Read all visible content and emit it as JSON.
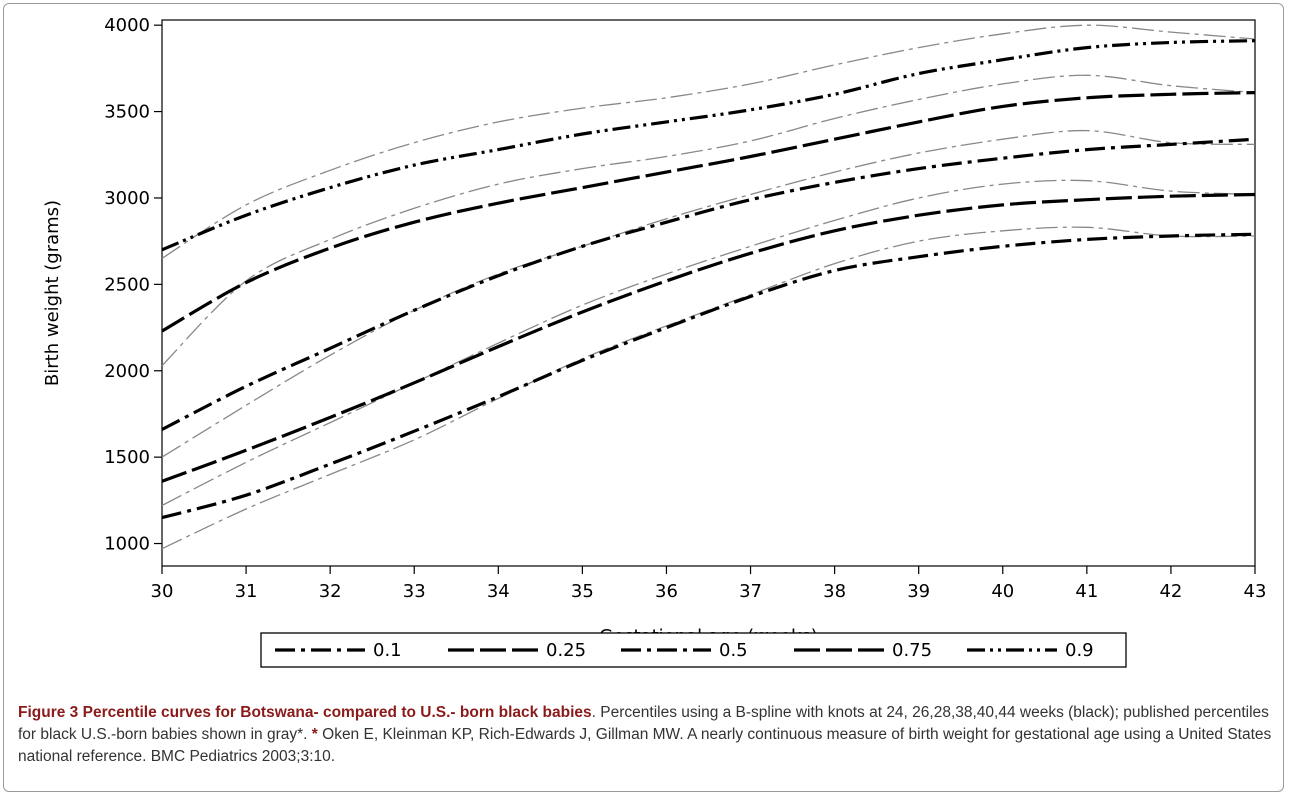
{
  "chart_data": {
    "type": "line",
    "xlabel": "Gestational age (weeks)",
    "ylabel": "Birth weight (grams)",
    "xlim": [
      30,
      43
    ],
    "ylim": [
      870,
      4030
    ],
    "xticks": [
      30,
      31,
      32,
      33,
      34,
      35,
      36,
      37,
      38,
      39,
      40,
      41,
      42,
      43
    ],
    "yticks": [
      1000,
      1500,
      2000,
      2500,
      3000,
      3500,
      4000
    ],
    "x": [
      30,
      31,
      32,
      33,
      34,
      35,
      36,
      37,
      38,
      39,
      40,
      41,
      42,
      43
    ],
    "legend_position": "bottom",
    "series": [
      {
        "name": "0.1",
        "color": "#000000",
        "dash": "dash-dot",
        "group": "botswana",
        "values": [
          1150,
          1280,
          1460,
          1650,
          1850,
          2060,
          2250,
          2430,
          2580,
          2660,
          2720,
          2760,
          2780,
          2790
        ]
      },
      {
        "name": "0.25",
        "color": "#000000",
        "dash": "long-dash",
        "group": "botswana",
        "values": [
          1360,
          1540,
          1730,
          1930,
          2140,
          2340,
          2520,
          2680,
          2810,
          2900,
          2960,
          2990,
          3010,
          3020
        ]
      },
      {
        "name": "0.5",
        "color": "#000000",
        "dash": "dash-dot",
        "group": "botswana",
        "values": [
          1660,
          1910,
          2130,
          2350,
          2550,
          2720,
          2860,
          2990,
          3090,
          3170,
          3230,
          3280,
          3310,
          3340
        ]
      },
      {
        "name": "0.75",
        "color": "#000000",
        "dash": "long-dash",
        "group": "botswana",
        "values": [
          2230,
          2510,
          2710,
          2860,
          2970,
          3060,
          3150,
          3240,
          3340,
          3440,
          3530,
          3580,
          3600,
          3610
        ]
      },
      {
        "name": "0.9",
        "color": "#000000",
        "dash": "dash-dot-dot",
        "group": "botswana",
        "values": [
          2700,
          2900,
          3060,
          3190,
          3280,
          3370,
          3440,
          3510,
          3600,
          3720,
          3800,
          3870,
          3900,
          3910
        ]
      },
      {
        "color": "#888888",
        "group": "us",
        "values": [
          970,
          1200,
          1400,
          1600,
          1840,
          2070,
          2260,
          2440,
          2620,
          2750,
          2810,
          2830,
          2780,
          2780
        ]
      },
      {
        "color": "#888888",
        "group": "us",
        "values": [
          1220,
          1470,
          1700,
          1930,
          2160,
          2380,
          2560,
          2720,
          2870,
          3000,
          3080,
          3100,
          3040,
          3020
        ]
      },
      {
        "color": "#888888",
        "group": "us",
        "values": [
          1500,
          1800,
          2090,
          2350,
          2560,
          2720,
          2880,
          3020,
          3150,
          3260,
          3340,
          3390,
          3320,
          3310
        ]
      },
      {
        "color": "#888888",
        "group": "us",
        "values": [
          2030,
          2520,
          2760,
          2940,
          3080,
          3170,
          3240,
          3330,
          3460,
          3570,
          3660,
          3710,
          3650,
          3610
        ]
      },
      {
        "color": "#888888",
        "group": "us",
        "values": [
          2650,
          2960,
          3160,
          3320,
          3440,
          3520,
          3580,
          3660,
          3770,
          3870,
          3950,
          4000,
          3960,
          3920
        ]
      }
    ]
  },
  "caption": {
    "label": "Figure 3",
    "title": "Percentile curves for Botswana- compared to U.S.- born black babies",
    "body": ". Percentiles using a B-spline with knots at 24, 26,28,38,40,44 weeks (black); published percentiles for black U.S.-born babies shown in gray*. ",
    "star": "*",
    "reference": " Oken E, Kleinman KP, Rich-Edwards J, Gillman MW. A nearly continuous measure of birth weight for gestational age using a United States national reference. BMC Pediatrics 2003;3:10."
  }
}
